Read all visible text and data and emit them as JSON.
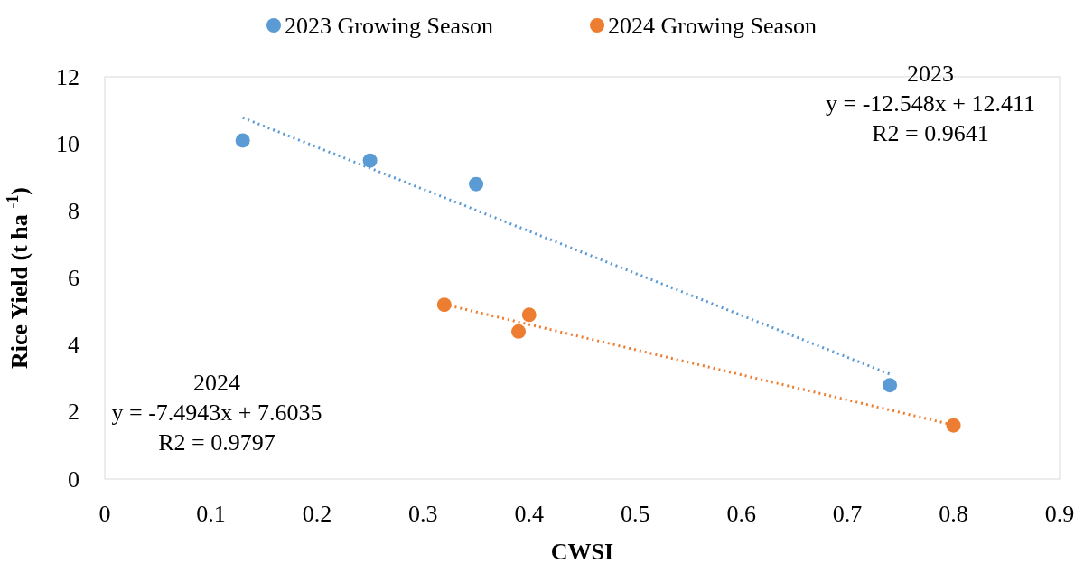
{
  "chart_data": {
    "type": "scatter",
    "xlabel": "CWSI",
    "ylabel": "Rice Yield (t ha $^{-1}$)",
    "xlim": [
      0,
      0.9
    ],
    "ylim": [
      0,
      12
    ],
    "xticks": [
      0,
      0.1,
      0.2,
      0.3,
      0.4,
      0.5,
      0.6,
      0.7,
      0.8,
      0.9
    ],
    "yticks": [
      0,
      2,
      4,
      6,
      8,
      10,
      12
    ],
    "grid": false,
    "legend": "top",
    "marker": "circle",
    "series": [
      {
        "name": "2023 Growing Season",
        "color": "#5b9bd5",
        "x": [
          0.13,
          0.25,
          0.35,
          0.74
        ],
        "values": [
          10.1,
          9.5,
          8.8,
          2.8
        ]
      },
      {
        "name": "2024 Growing Season",
        "color": "#ed7d31",
        "x": [
          0.32,
          0.39,
          0.4,
          0.8
        ],
        "values": [
          5.2,
          4.4,
          4.9,
          1.6
        ]
      },
      {
        "type": "line",
        "color": "#5b9bd5",
        "marker": "none",
        "line_style": "dotted",
        "x": [
          0.13,
          0.74
        ],
        "values": [
          10.78,
          3.13
        ]
      },
      {
        "type": "line",
        "color": "#ed7d31",
        "marker": "none",
        "line_style": "dotted",
        "x": [
          0.32,
          0.8
        ],
        "values": [
          5.21,
          1.61
        ]
      }
    ],
    "annotations": [
      "2023\ny = -12.548x + 12.411\nR2 = 0.9641",
      "2024\ny = -7.4943x + 7.6035\nR2 = 0.9797"
    ]
  }
}
